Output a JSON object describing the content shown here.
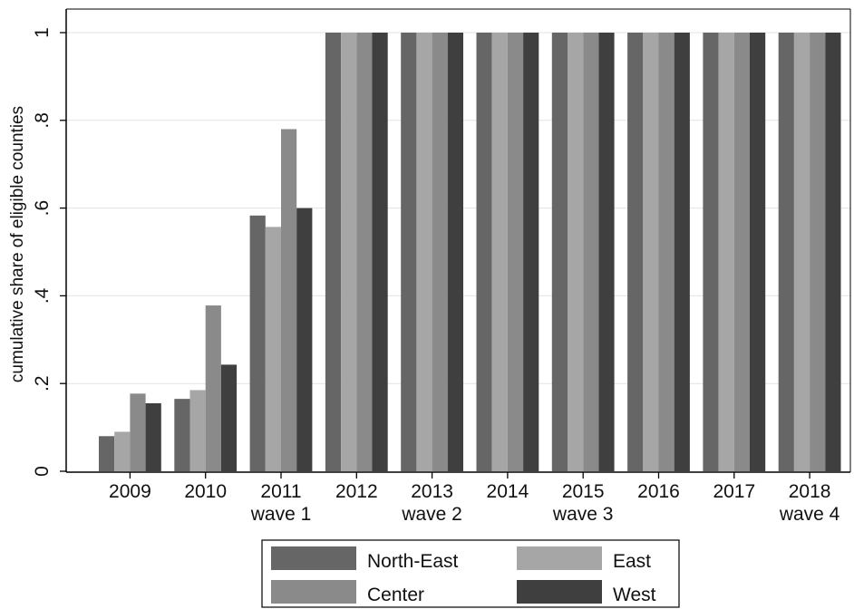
{
  "chart_data": {
    "type": "bar",
    "ylabel": "cumulative share of eligible counties",
    "ylim": [
      0,
      1
    ],
    "yticks": [
      {
        "value": 0,
        "label": "0"
      },
      {
        "value": 0.2,
        "label": ".2"
      },
      {
        "value": 0.4,
        "label": ".4"
      },
      {
        "value": 0.6,
        "label": ".6"
      },
      {
        "value": 0.8,
        "label": ".8"
      },
      {
        "value": 1,
        "label": "1"
      }
    ],
    "categories": [
      "2009",
      "2010",
      "2011",
      "2012",
      "2013",
      "2014",
      "2015",
      "2016",
      "2017",
      "2018"
    ],
    "category_sublabels": [
      "",
      "",
      "wave 1",
      "",
      "wave 2",
      "",
      "wave 3",
      "",
      "",
      "wave 4"
    ],
    "grid": true,
    "legend_position": "bottom",
    "series": [
      {
        "name": "North-East",
        "color": "#666666",
        "values": [
          0.08,
          0.165,
          0.583,
          1,
          1,
          1,
          1,
          1,
          1,
          1
        ]
      },
      {
        "name": "East",
        "color": "#a6a6a6",
        "values": [
          0.09,
          0.185,
          0.557,
          1,
          1,
          1,
          1,
          1,
          1,
          1
        ]
      },
      {
        "name": "Center",
        "color": "#8a8a8a",
        "values": [
          0.177,
          0.378,
          0.78,
          1,
          1,
          1,
          1,
          1,
          1,
          1
        ]
      },
      {
        "name": "West",
        "color": "#3f3f3f",
        "values": [
          0.155,
          0.243,
          0.6,
          1,
          1,
          1,
          1,
          1,
          1,
          1
        ]
      }
    ]
  }
}
